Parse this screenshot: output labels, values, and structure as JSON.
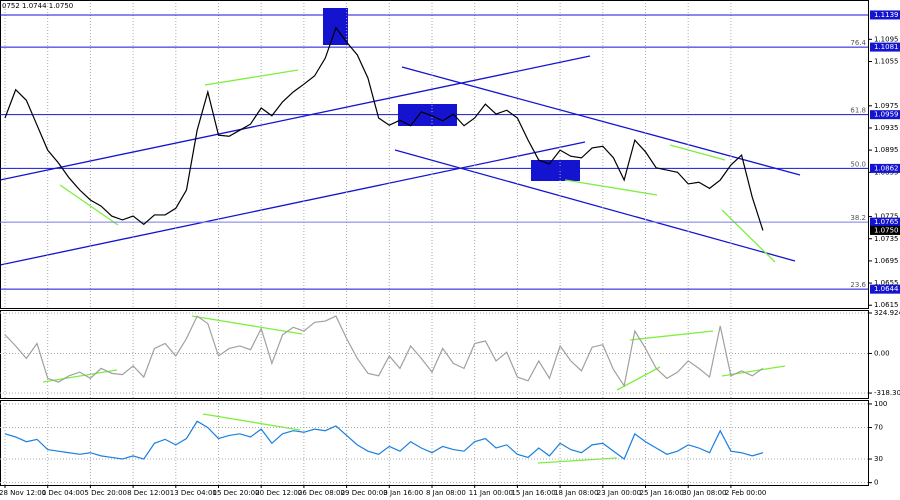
{
  "header": "0752 1.0744 1.0750",
  "chart_data": [
    {
      "type": "line",
      "color": "#000000",
      "ylim": [
        1.061,
        1.1166
      ],
      "yticks": [
        1.1095,
        1.1055,
        1.0975,
        1.0935,
        1.0895,
        1.0855,
        1.0775,
        1.0735,
        1.0695,
        1.0655,
        1.0615
      ],
      "levels": [
        {
          "value": 1.1139
        },
        {
          "value": 1.1081,
          "fib": "76.4"
        },
        {
          "value": 1.0959,
          "fib": "61.8"
        },
        {
          "value": 1.0862,
          "fib": "50.0"
        },
        {
          "value": 1.0765,
          "fib": "38.2"
        },
        {
          "value": 1.0644,
          "fib": "23.6"
        }
      ],
      "current_price": {
        "value": 1.075,
        "label": "1.0750"
      },
      "values": [
        1.0953,
        1.1004,
        1.0985,
        1.094,
        1.0895,
        1.0872,
        1.0845,
        1.0823,
        1.0805,
        1.0794,
        1.0776,
        1.0769,
        1.0776,
        1.0761,
        1.0778,
        1.0778,
        1.079,
        1.0823,
        1.0931,
        1.1,
        1.0922,
        1.092,
        1.0931,
        1.0942,
        1.0971,
        1.0957,
        1.0982,
        1.1,
        1.1014,
        1.1029,
        1.1061,
        1.1116,
        1.109,
        1.1067,
        1.1025,
        1.0953,
        1.094,
        1.0949,
        1.0939,
        1.0964,
        1.0957,
        1.0948,
        1.096,
        1.0939,
        1.0953,
        1.0978,
        1.096,
        1.0967,
        1.0953,
        1.0913,
        1.0877,
        1.087,
        1.0895,
        1.0884,
        1.0881,
        1.0899,
        1.0902,
        1.0881,
        1.0841,
        1.0913,
        1.0892,
        1.0863,
        1.0859,
        1.0855,
        1.0834,
        1.0837,
        1.0826,
        1.0841,
        1.0868,
        1.0886,
        1.081,
        1.075
      ]
    },
    {
      "type": "line",
      "color": "#a0a0a0",
      "ylim": [
        -358,
        349
      ],
      "yticks": [
        324.9243,
        {
          "value": 0,
          "label": "0.00"
        },
        -318.308
      ],
      "values": [
        150,
        60,
        -40,
        80,
        -200,
        -230,
        -180,
        -150,
        -200,
        -120,
        -160,
        -170,
        -100,
        -190,
        40,
        80,
        -20,
        120,
        300,
        240,
        -20,
        40,
        60,
        30,
        200,
        -80,
        150,
        210,
        180,
        250,
        260,
        300,
        120,
        -40,
        -160,
        -180,
        -20,
        -120,
        60,
        -40,
        -150,
        40,
        -80,
        -120,
        80,
        100,
        -60,
        10,
        -190,
        -220,
        -60,
        -200,
        60,
        -60,
        -140,
        50,
        70,
        -130,
        -260,
        180,
        40,
        -120,
        -200,
        -150,
        -60,
        -120,
        -190,
        220,
        -180,
        -140,
        -180,
        -120
      ]
    },
    {
      "type": "line",
      "color": "#1a7fe0",
      "ylim": [
        -3,
        105
      ],
      "yticks": [
        100,
        70,
        30,
        0
      ],
      "values": [
        62,
        58,
        52,
        55,
        42,
        40,
        38,
        36,
        38,
        34,
        32,
        30,
        34,
        30,
        50,
        55,
        48,
        56,
        78,
        70,
        56,
        60,
        62,
        58,
        68,
        50,
        62,
        66,
        64,
        68,
        66,
        72,
        60,
        48,
        40,
        36,
        46,
        40,
        52,
        44,
        38,
        46,
        42,
        40,
        52,
        56,
        44,
        48,
        36,
        32,
        44,
        34,
        50,
        42,
        38,
        48,
        50,
        40,
        30,
        62,
        52,
        44,
        36,
        40,
        48,
        44,
        38,
        66,
        40,
        38,
        34,
        38
      ],
      "categories": [
        "28 Nov 12:00",
        null,
        null,
        null,
        "1 Dec 04:00",
        null,
        null,
        null,
        "5 Dec 20:00",
        null,
        null,
        null,
        "8 Dec 12:00",
        null,
        null,
        null,
        "13 Dec 04:00",
        null,
        null,
        null,
        "15 Dec 20:00",
        null,
        null,
        null,
        "20 Dec 12:00",
        null,
        null,
        null,
        "26 Dec 08:00",
        null,
        null,
        null,
        "29 Dec 00:00",
        null,
        null,
        null,
        "3 Jan 16:00",
        null,
        null,
        null,
        "8 Jan 08:00",
        null,
        null,
        null,
        "11 Jan 00:00",
        null,
        null,
        null,
        "15 Jan 16:00",
        null,
        null,
        null,
        "18 Jan 08:00",
        null,
        null,
        null,
        "23 Jan 00:00",
        null,
        null,
        null,
        "25 Jan 16:00",
        null,
        null,
        null,
        "30 Jan 08:00",
        null,
        null,
        null,
        "2 Feb 00:00",
        null,
        null,
        null
      ]
    }
  ]
}
